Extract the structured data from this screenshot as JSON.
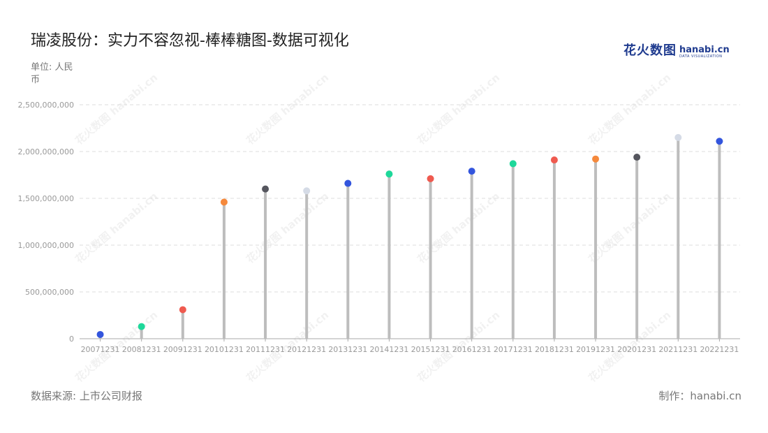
{
  "title": "瑞凌股份：实力不容忽视-棒棒糖图-数据可视化",
  "unit_label": "单位: 人民币",
  "logo": {
    "main": "花火数图",
    "domain": "hanabi.cn",
    "sub": "DATA VISUALIZATION"
  },
  "watermark_text": "花火数图 hanabi.cn",
  "source_label": "数据来源: 上市公司财报",
  "credit_label": "制作：hanabi.cn",
  "chart_data": {
    "type": "lollipop",
    "categories": [
      "20071231",
      "20081231",
      "20091231",
      "20101231",
      "20111231",
      "20121231",
      "20131231",
      "20141231",
      "20151231",
      "20161231",
      "20171231",
      "20181231",
      "20191231",
      "20201231",
      "20211231",
      "20221231"
    ],
    "values": [
      45000000,
      130000000,
      310000000,
      1460000000,
      1600000000,
      1580000000,
      1660000000,
      1760000000,
      1710000000,
      1790000000,
      1870000000,
      1910000000,
      1920000000,
      1940000000,
      2150000000,
      2110000000
    ],
    "dot_colors": [
      "#3355dd",
      "#1ed89a",
      "#ef5a4f",
      "#f5893c",
      "#55565e",
      "#d5dbe6",
      "#3355dd",
      "#1ed89a",
      "#ef5a4f",
      "#3355dd",
      "#1ed89a",
      "#ef5a4f",
      "#f5893c",
      "#55565e",
      "#d5dbe6",
      "#3355dd"
    ],
    "stem_color": "#bdbdbd",
    "ylim": [
      0,
      2500000000
    ],
    "yticks": [
      0,
      500000000,
      1000000000,
      1500000000,
      2000000000,
      2500000000
    ],
    "ytick_labels": [
      "0",
      "500,000,000",
      "1,000,000,000",
      "1,500,000,000",
      "2,000,000,000",
      "2,500,000,000"
    ],
    "grid": true,
    "legend": "none"
  }
}
